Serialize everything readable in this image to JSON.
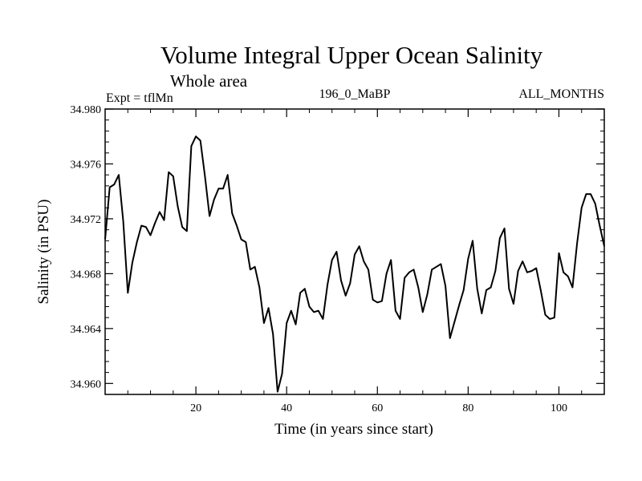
{
  "chart_data": {
    "type": "line",
    "title": "Volume Integral Upper Ocean Salinity",
    "subtitle": "Whole area",
    "experiment": "Expt = tflMn",
    "run_label": "196_0_MaBP",
    "period_label": "ALL_MONTHS",
    "xlabel": "Time (in years since start)",
    "ylabel": "Salinity (in PSU)",
    "xlim": [
      0,
      110
    ],
    "ylim": [
      34.9592,
      34.98
    ],
    "x_ticks": [
      20,
      40,
      60,
      80,
      100
    ],
    "x_tick_labels": [
      "20",
      "40",
      "60",
      "80",
      "100"
    ],
    "y_ticks": [
      34.96,
      34.964,
      34.968,
      34.972,
      34.976,
      34.98
    ],
    "y_tick_labels": [
      "34.960",
      "34.964",
      "34.968",
      "34.972",
      "34.976",
      "34.980"
    ],
    "grid": false,
    "series": [
      {
        "name": "salinity",
        "color": "#000000",
        "x": [
          0,
          1,
          2,
          3,
          4,
          5,
          6,
          7,
          8,
          9,
          10,
          11,
          12,
          13,
          14,
          15,
          16,
          17,
          18,
          19,
          20,
          21,
          22,
          23,
          24,
          25,
          26,
          27,
          28,
          29,
          30,
          31,
          32,
          33,
          34,
          35,
          36,
          37,
          38,
          39,
          40,
          41,
          42,
          43,
          44,
          45,
          46,
          47,
          48,
          49,
          50,
          51,
          52,
          53,
          54,
          55,
          56,
          57,
          58,
          59,
          60,
          61,
          62,
          63,
          64,
          65,
          66,
          67,
          68,
          69,
          70,
          71,
          72,
          73,
          74,
          75,
          76,
          77,
          78,
          79,
          80,
          81,
          82,
          83,
          84,
          85,
          86,
          87,
          88,
          89,
          90,
          91,
          92,
          93,
          94,
          95,
          96,
          97,
          98,
          99,
          100,
          101,
          102,
          103,
          104,
          105,
          106,
          107,
          108,
          109,
          110
        ],
        "values": [
          34.9705,
          34.9743,
          34.9745,
          34.9752,
          34.9718,
          34.9666,
          34.9688,
          34.9703,
          34.9715,
          34.9714,
          34.9708,
          34.9717,
          34.9725,
          34.9719,
          34.9754,
          34.9751,
          34.9729,
          34.9714,
          34.9711,
          34.9773,
          34.978,
          34.9777,
          34.9751,
          34.9722,
          34.9734,
          34.9742,
          34.9742,
          34.9752,
          34.9724,
          34.9715,
          34.9705,
          34.9703,
          34.9683,
          34.9685,
          34.967,
          34.9644,
          34.9655,
          34.9636,
          34.9594,
          34.9607,
          34.9644,
          34.9653,
          34.9643,
          34.9666,
          34.9669,
          34.9656,
          34.9652,
          34.9653,
          34.9647,
          34.9672,
          34.969,
          34.9696,
          34.9675,
          34.9664,
          34.9673,
          34.9694,
          34.97,
          34.9689,
          34.9683,
          34.9661,
          34.9659,
          34.966,
          34.968,
          34.969,
          34.9653,
          34.9647,
          34.9677,
          34.9681,
          34.9683,
          34.967,
          34.9652,
          34.9665,
          34.9683,
          34.9685,
          34.9687,
          34.9671,
          34.9633,
          34.9645,
          34.9657,
          34.9668,
          34.9691,
          34.9704,
          34.9669,
          34.9651,
          34.9668,
          34.967,
          34.9682,
          34.9706,
          34.9713,
          34.9669,
          34.9658,
          34.9682,
          34.9689,
          34.9681,
          34.9682,
          34.9684,
          34.9668,
          34.965,
          34.9647,
          34.9648,
          34.9695,
          34.9681,
          34.9678,
          34.967,
          34.9702,
          34.9728,
          34.9738,
          34.9738,
          34.9731,
          34.9715,
          34.97
        ]
      }
    ]
  }
}
